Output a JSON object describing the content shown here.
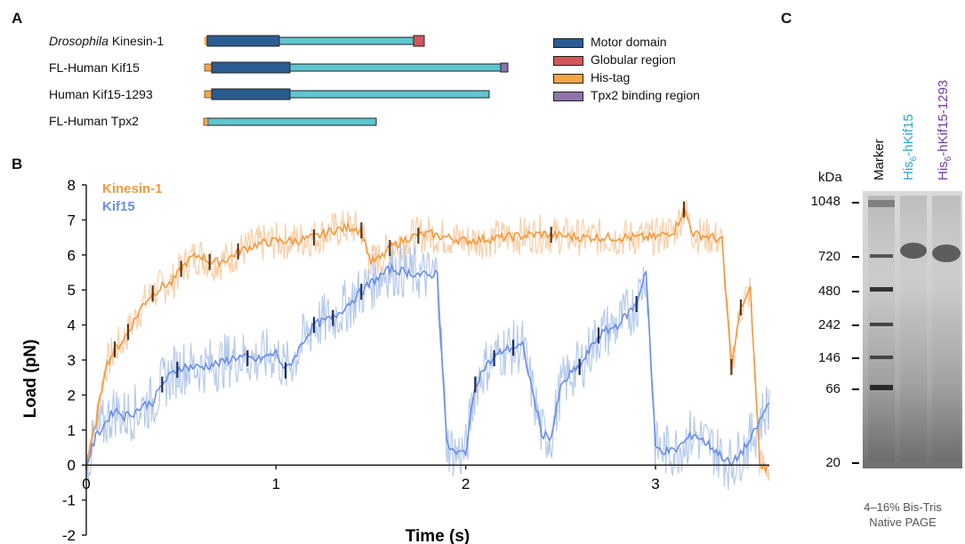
{
  "panels": {
    "a": "A",
    "b": "B",
    "c": "C"
  },
  "constructs": [
    {
      "italic": "Drosophila",
      "label": " Kinesin-1"
    },
    {
      "italic": "",
      "label": "FL-Human Kif15"
    },
    {
      "italic": "",
      "label": "Human Kif15-1293"
    },
    {
      "italic": "",
      "label": "FL-Human Tpx2"
    }
  ],
  "legend": [
    {
      "label": "Motor domain",
      "color": "#2b5c91"
    },
    {
      "label": "Globular region",
      "color": "#d0585a"
    },
    {
      "label": "His-tag",
      "color": "#f4a548"
    },
    {
      "label": "Tpx2 binding region",
      "color": "#8d74ad"
    }
  ],
  "stalk_color": "#5fc6cf",
  "chart_data": {
    "type": "line",
    "xlabel": "Time (s)",
    "ylabel": "Load (pN)",
    "xlim": [
      0,
      3.6
    ],
    "ylim": [
      -2,
      8
    ],
    "xticks": [
      0,
      1,
      2,
      3
    ],
    "yticks": [
      -2,
      -1,
      0,
      1,
      2,
      3,
      4,
      5,
      6,
      7,
      8
    ],
    "series": [
      {
        "name": "Kinesin-1",
        "color": "#f39a3e",
        "x": [
          0,
          0.05,
          0.1,
          0.15,
          0.2,
          0.25,
          0.3,
          0.35,
          0.4,
          0.45,
          0.5,
          0.55,
          0.6,
          0.65,
          0.7,
          0.75,
          0.8,
          0.9,
          1.0,
          1.1,
          1.2,
          1.3,
          1.4,
          1.45,
          1.5,
          1.55,
          1.6,
          1.7,
          1.8,
          1.9,
          2.0,
          2.2,
          2.4,
          2.6,
          2.8,
          3.0,
          3.1,
          3.15,
          3.2,
          3.3,
          3.35,
          3.4,
          3.45,
          3.5,
          3.55,
          3.6
        ],
        "y": [
          0,
          1.2,
          2.8,
          3.3,
          3.6,
          4.1,
          4.6,
          4.9,
          5.1,
          5.2,
          5.6,
          5.9,
          6.0,
          5.8,
          5.8,
          5.9,
          6.1,
          6.3,
          6.4,
          6.4,
          6.5,
          6.7,
          6.8,
          6.7,
          5.8,
          5.9,
          6.2,
          6.5,
          6.6,
          6.5,
          6.4,
          6.5,
          6.6,
          6.5,
          6.5,
          6.5,
          6.7,
          7.3,
          6.6,
          6.5,
          6.4,
          2.8,
          4.5,
          5.0,
          0.0,
          -0.1
        ]
      },
      {
        "name": "Kif15",
        "color": "#6b8de6",
        "x": [
          0,
          0.05,
          0.1,
          0.15,
          0.2,
          0.25,
          0.3,
          0.35,
          0.4,
          0.45,
          0.5,
          0.6,
          0.7,
          0.8,
          0.9,
          1.0,
          1.05,
          1.1,
          1.15,
          1.2,
          1.3,
          1.4,
          1.5,
          1.6,
          1.7,
          1.8,
          1.85,
          1.9,
          1.95,
          2.0,
          2.05,
          2.1,
          2.2,
          2.3,
          2.4,
          2.45,
          2.5,
          2.55,
          2.6,
          2.7,
          2.8,
          2.9,
          2.95,
          3.0,
          3.05,
          3.1,
          3.2,
          3.3,
          3.4,
          3.5,
          3.6
        ],
        "y": [
          0,
          0.8,
          1.2,
          1.6,
          1.4,
          1.5,
          1.7,
          1.8,
          2.3,
          2.6,
          2.8,
          2.8,
          2.9,
          3.1,
          3.0,
          3.2,
          2.7,
          3.1,
          3.6,
          4.0,
          4.2,
          4.7,
          5.2,
          5.6,
          5.5,
          5.4,
          5.5,
          0.6,
          0.3,
          0.4,
          2.3,
          2.8,
          3.3,
          3.4,
          0.9,
          0.8,
          2.2,
          2.6,
          2.8,
          3.7,
          4.0,
          4.6,
          5.6,
          0.5,
          0.4,
          0.4,
          0.9,
          0.5,
          0.0,
          0.7,
          1.8
        ]
      }
    ]
  },
  "gel": {
    "unit": "kDa",
    "markers": [
      "1048",
      "720",
      "480",
      "242",
      "146",
      "66",
      "20"
    ],
    "lanes": [
      {
        "label": "Marker",
        "sub": "",
        "tail": "",
        "color": "#111111"
      },
      {
        "label": "His",
        "sub": "6",
        "tail": "-hKif15",
        "color": "#2aa7d9"
      },
      {
        "label": "His",
        "sub": "6",
        "tail": "-hKif15-1293",
        "color": "#7a3a9a"
      }
    ],
    "caption_line1": "4–16% Bis-Tris",
    "caption_line2": "Native PAGE"
  }
}
